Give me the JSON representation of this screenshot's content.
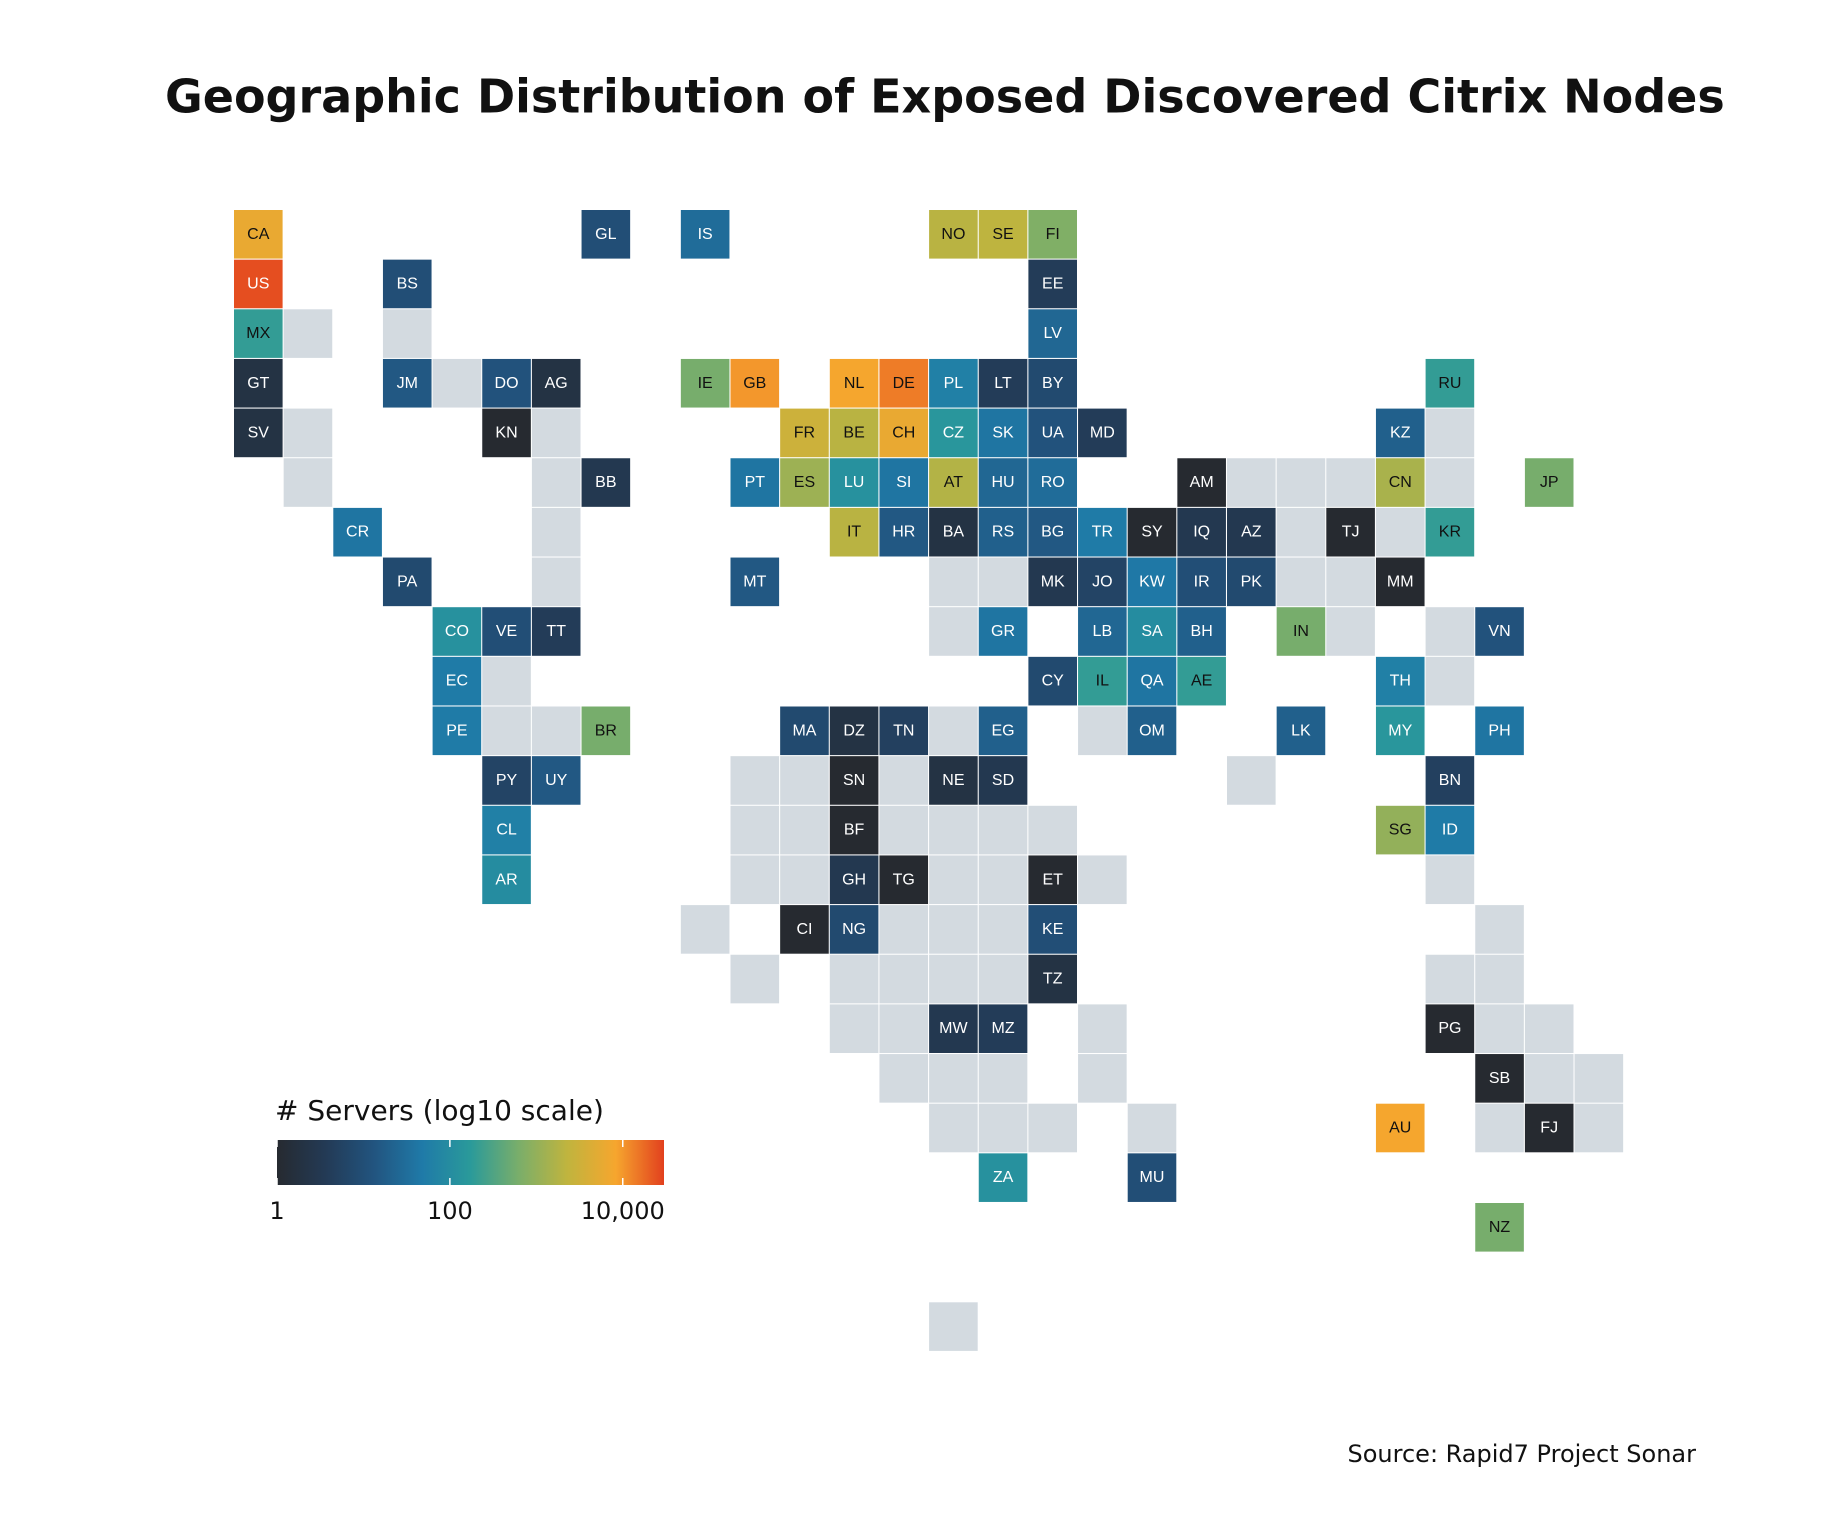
{
  "chart_data": {
    "type": "tilemap",
    "title": "Geographic Distribution of Exposed Discovered Citrix Nodes",
    "legend_title": "# Servers (log10 scale)",
    "source": "Source: Rapid7 Project Sonar",
    "categories": [
      "CA",
      "US",
      "MX",
      "GT",
      "SV",
      "BS",
      "JM",
      "DO",
      "AG",
      "KN",
      "BB",
      "CR",
      "PA",
      "CO",
      "VE",
      "TT",
      "EC",
      "PE",
      "BR",
      "PY",
      "UY",
      "CL",
      "AR",
      "GL",
      "IS",
      "IE",
      "GB",
      "PT",
      "MT",
      "FR",
      "ES",
      "MA",
      "NL",
      "BE",
      "IT",
      "DZ",
      "DE",
      "CH",
      "LU",
      "SI",
      "HR",
      "TN",
      "NO",
      "PL",
      "CZ",
      "AT",
      "BA",
      "SE",
      "LT",
      "SK",
      "HU",
      "RS",
      "GR",
      "EG",
      "FI",
      "EE",
      "LV",
      "BY",
      "UA",
      "RO",
      "BG",
      "MK",
      "CY",
      "MD",
      "TR",
      "JO",
      "LB",
      "IL",
      "SY",
      "KW",
      "SA",
      "QA",
      "OM",
      "MU",
      "AM",
      "IQ",
      "IR",
      "BH",
      "AE",
      "AZ",
      "PK",
      "IN",
      "LK",
      "TJ",
      "KZ",
      "CN",
      "MM",
      "TH",
      "MY",
      "SG",
      "AU",
      "RU",
      "KR",
      "ID",
      "BN",
      "PG",
      "VN",
      "PH",
      "SB",
      "NZ",
      "JP",
      "FJ",
      "SN",
      "NE",
      "SD",
      "BF",
      "GH",
      "TG",
      "ET",
      "CI",
      "NG",
      "KE",
      "TZ",
      "MW",
      "MZ",
      "ZA"
    ],
    "values": [
      6000,
      25000,
      200,
      2,
      2,
      10,
      15,
      12,
      2,
      1,
      3,
      40,
      8,
      120,
      10,
      4,
      50,
      50,
      600,
      6,
      15,
      60,
      100,
      10,
      30,
      600,
      10000,
      40,
      15,
      3000,
      1200,
      8,
      8000,
      2000,
      2000,
      2,
      14000,
      6000,
      120,
      40,
      15,
      5,
      2000,
      60,
      150,
      1800,
      2,
      2200,
      4,
      40,
      25,
      20,
      40,
      20,
      700,
      4,
      25,
      8,
      12,
      30,
      15,
      3,
      8,
      4,
      50,
      6,
      25,
      200,
      1,
      45,
      100,
      40,
      20,
      10,
      1,
      3,
      10,
      20,
      200,
      3,
      8,
      600,
      20,
      1,
      20,
      1500,
      1,
      60,
      150,
      1000,
      8000,
      200,
      200,
      50,
      5,
      1,
      12,
      40,
      1,
      600,
      600,
      1,
      1,
      2,
      3,
      1,
      3,
      1,
      1,
      1,
      8,
      10,
      2,
      3,
      4,
      120
    ],
    "log": true,
    "clim": [
      1,
      30000
    ],
    "cticks": [
      1,
      100,
      {
        "value": 10000,
        "label": "10,000"
      }
    ],
    "colors": [
      "#262a30",
      "#233a55",
      "#22547f",
      "#1f7aa8",
      "#2a9a9a",
      "#7aae6a",
      "#c0b43e",
      "#f6a62e",
      "#e2401e"
    ],
    "missing_color": "#d3dae0"
  }
}
